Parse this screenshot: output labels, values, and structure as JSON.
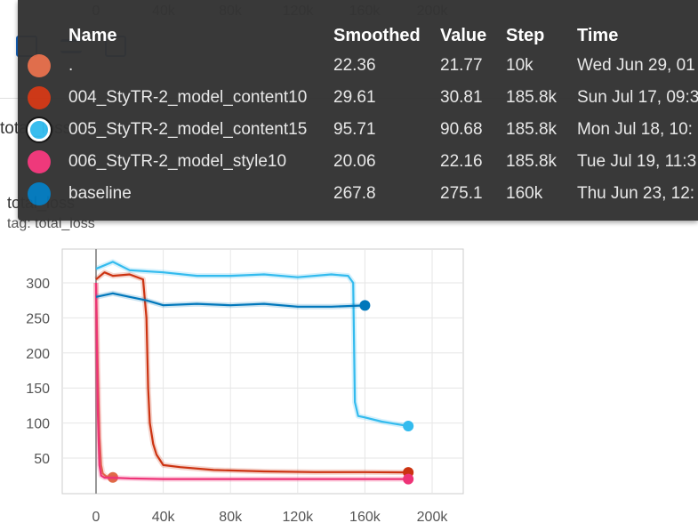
{
  "background": {
    "top_axis_ticks": [
      "0",
      "40k",
      "80k",
      "120k",
      "160k",
      "200k"
    ],
    "total_label": "total_loss"
  },
  "card": {
    "title": "total_loss",
    "tag": "tag: total_loss"
  },
  "tooltip": {
    "headers": {
      "name": "Name",
      "smoothed": "Smoothed",
      "value": "Value",
      "step": "Step",
      "time": "Time"
    },
    "rows": [
      {
        "name": ".",
        "smoothed": "22.36",
        "value": "21.77",
        "step": "10k",
        "time": "Wed Jun 29, 01",
        "color": "#e06a47"
      },
      {
        "name": "004_StyTR-2_model_content10",
        "smoothed": "29.61",
        "value": "30.81",
        "step": "185.8k",
        "time": "Sun Jul 17, 09:3",
        "color": "#cc3311"
      },
      {
        "name": "005_StyTR-2_model_content15",
        "smoothed": "95.71",
        "value": "90.68",
        "step": "185.8k",
        "time": "Mon Jul 18, 10:",
        "color": "#33bbee",
        "highlighted": true
      },
      {
        "name": "006_StyTR-2_model_style10",
        "smoothed": "20.06",
        "value": "22.16",
        "step": "185.8k",
        "time": "Tue Jul 19, 11:3",
        "color": "#ee3377"
      },
      {
        "name": "baseline",
        "smoothed": "267.8",
        "value": "275.1",
        "step": "160k",
        "time": "Thu Jun 23, 12:",
        "color": "#0077bb"
      }
    ]
  },
  "chart_data": {
    "type": "line",
    "xlim": [
      0,
      200000
    ],
    "ylim": [
      0,
      340
    ],
    "x_ticks": [
      "0",
      "40k",
      "80k",
      "120k",
      "160k",
      "200k"
    ],
    "y_ticks": [
      "50",
      "100",
      "150",
      "200",
      "250",
      "300"
    ],
    "grid": true,
    "series": [
      {
        "name": ".",
        "color": "#e06a47",
        "x": [
          0,
          1000,
          2000,
          3000,
          4000,
          6000,
          8000,
          10000
        ],
        "y": [
          300,
          180,
          80,
          40,
          28,
          24,
          23,
          22.36
        ]
      },
      {
        "name": "004_StyTR-2_model_content10",
        "color": "#cc3311",
        "x": [
          0,
          5000,
          10000,
          20000,
          28000,
          30000,
          31000,
          32000,
          34000,
          36000,
          40000,
          50000,
          70000,
          100000,
          130000,
          160000,
          185800
        ],
        "y": [
          305,
          315,
          310,
          312,
          305,
          250,
          150,
          100,
          70,
          55,
          40,
          37,
          33,
          31,
          30,
          30,
          29.61
        ]
      },
      {
        "name": "005_StyTR-2_model_content15",
        "color": "#33bbee",
        "x": [
          0,
          10000,
          20000,
          40000,
          60000,
          80000,
          100000,
          120000,
          140000,
          150000,
          153000,
          154000,
          156000,
          160000,
          170000,
          180000,
          185800
        ],
        "y": [
          320,
          330,
          318,
          315,
          310,
          310,
          312,
          308,
          312,
          310,
          300,
          130,
          110,
          108,
          102,
          98,
          95.71
        ]
      },
      {
        "name": "006_StyTR-2_model_style10",
        "color": "#ee3377",
        "x": [
          0,
          1000,
          2000,
          3000,
          5000,
          10000,
          20000,
          40000,
          80000,
          120000,
          160000,
          185800
        ],
        "y": [
          300,
          120,
          40,
          25,
          22,
          22,
          21,
          20,
          20,
          20,
          20,
          20.06
        ]
      },
      {
        "name": "baseline",
        "color": "#0077bb",
        "x": [
          0,
          10000,
          20000,
          30000,
          40000,
          60000,
          80000,
          100000,
          120000,
          140000,
          160000
        ],
        "y": [
          280,
          285,
          280,
          275,
          268,
          270,
          268,
          270,
          266,
          266,
          267.8
        ]
      }
    ]
  }
}
